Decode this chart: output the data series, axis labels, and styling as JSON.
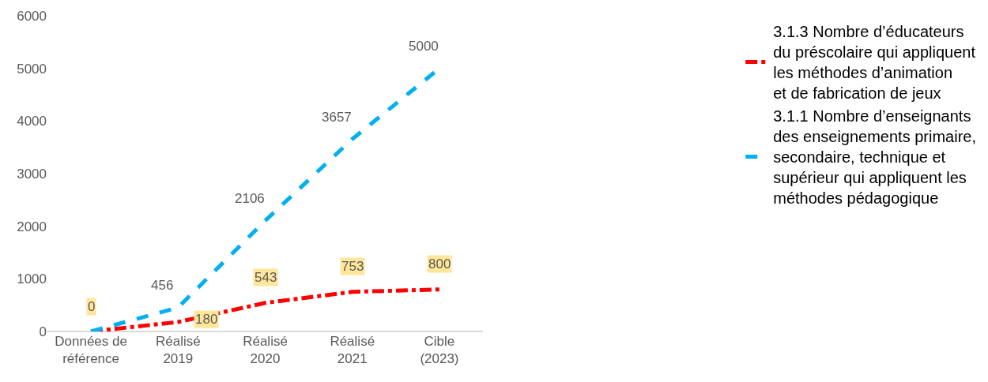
{
  "chart_data": {
    "type": "line",
    "categories": [
      "Données de\nréférence",
      "Réalisé\n2019",
      "Réalisé\n2020",
      "Réalisé\n2021",
      "Cible\n(2023)"
    ],
    "series": [
      {
        "name": "3.1.3 Nombre d’éducateurs\ndu préscolaire qui appliquent\nles méthodes d’animation\net de fabrication de jeux",
        "color": "#ff0000",
        "line_style": "dashdot",
        "values": [
          0,
          180,
          543,
          753,
          800
        ],
        "value_labels": [
          "0",
          "180",
          "543",
          "753",
          "800"
        ]
      },
      {
        "name": "3.1.1 Nombre d’enseignants\ndes enseignements primaire,\nsecondaire, technique et\nsupérieur qui appliquent les\nméthodes pédagogique",
        "color": "#00b0f0",
        "line_style": "dashed",
        "values": [
          0,
          456,
          2106,
          3657,
          5000
        ],
        "value_labels": [
          null,
          "456",
          "2106",
          "3657",
          "5000"
        ]
      }
    ],
    "ylim": [
      0,
      6000
    ],
    "yticks": [
      0,
      1000,
      2000,
      3000,
      4000,
      5000,
      6000
    ],
    "grid": false,
    "legend": "right",
    "marker": "none"
  }
}
